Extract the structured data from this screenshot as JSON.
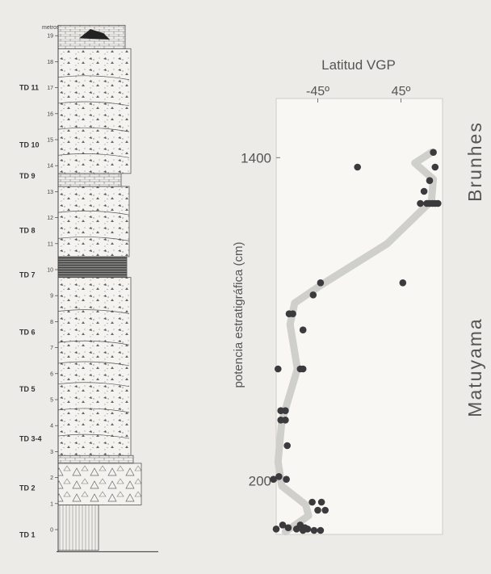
{
  "column": {
    "unit_label": "metros",
    "meter_ticks": [
      "0",
      "1",
      "2",
      "3",
      "4",
      "5",
      "6",
      "7",
      "8",
      "9",
      "10",
      "11",
      "12",
      "13",
      "14",
      "15",
      "16",
      "17",
      "18",
      "19"
    ],
    "units": [
      {
        "label": "TD 11",
        "m": 17.0
      },
      {
        "label": "TD 10",
        "m": 14.8
      },
      {
        "label": "TD 9",
        "m": 13.6
      },
      {
        "label": "TD 8",
        "m": 11.5
      },
      {
        "label": "TD 7",
        "m": 9.8
      },
      {
        "label": "TD 6",
        "m": 7.6
      },
      {
        "label": "TD 5",
        "m": 5.4
      },
      {
        "label": "TD 3-4",
        "m": 3.5
      },
      {
        "label": "TD 2",
        "m": 1.6
      },
      {
        "label": "TD 1",
        "m": -0.2
      }
    ]
  },
  "chart_data": {
    "type": "scatter",
    "title": "Latitud VGP",
    "xlabel": "",
    "ylabel": "potencia estratigráfica (cm)",
    "x_ticks": [
      "-45º",
      "45º"
    ],
    "x_tick_values": [
      -45,
      45
    ],
    "y_ticks": [
      "1400",
      "200"
    ],
    "y_tick_values": [
      1400,
      200
    ],
    "xlim": [
      -90,
      90
    ],
    "ylim": [
      0,
      1620
    ],
    "grid": false,
    "zones": [
      "Brunhes",
      "Matuyama"
    ],
    "points": [
      {
        "x": 80,
        "y": 1420
      },
      {
        "x": 82,
        "y": 1365
      },
      {
        "x": 76,
        "y": 1315
      },
      {
        "x": -2,
        "y": 1365
      },
      {
        "x": 70,
        "y": 1275
      },
      {
        "x": 73,
        "y": 1230
      },
      {
        "x": 76,
        "y": 1230
      },
      {
        "x": 79,
        "y": 1230
      },
      {
        "x": 82,
        "y": 1230
      },
      {
        "x": 85,
        "y": 1230
      },
      {
        "x": 66,
        "y": 1230
      },
      {
        "x": 47,
        "y": 935
      },
      {
        "x": -42,
        "y": 935
      },
      {
        "x": -50,
        "y": 890
      },
      {
        "x": -72,
        "y": 820
      },
      {
        "x": -76,
        "y": 820
      },
      {
        "x": -61,
        "y": 760
      },
      {
        "x": -88,
        "y": 615
      },
      {
        "x": -61,
        "y": 615
      },
      {
        "x": -64,
        "y": 615
      },
      {
        "x": -85,
        "y": 460
      },
      {
        "x": -80,
        "y": 460
      },
      {
        "x": -85,
        "y": 425
      },
      {
        "x": -80,
        "y": 425
      },
      {
        "x": -78,
        "y": 330
      },
      {
        "x": -93,
        "y": 205
      },
      {
        "x": -87,
        "y": 215
      },
      {
        "x": -79,
        "y": 205
      },
      {
        "x": -51,
        "y": 120
      },
      {
        "x": -41,
        "y": 120
      },
      {
        "x": -45,
        "y": 90
      },
      {
        "x": -37,
        "y": 90
      },
      {
        "x": -90,
        "y": 20
      },
      {
        "x": -83,
        "y": 35
      },
      {
        "x": -77,
        "y": 25
      },
      {
        "x": -68,
        "y": 20
      },
      {
        "x": -64,
        "y": 35
      },
      {
        "x": -59,
        "y": 25
      },
      {
        "x": -56,
        "y": 20
      },
      {
        "x": -49,
        "y": 15
      },
      {
        "x": -42,
        "y": 15
      },
      {
        "x": -61,
        "y": 15
      }
    ],
    "trend_line": [
      {
        "x": -80,
        "y": 10
      },
      {
        "x": -55,
        "y": 70
      },
      {
        "x": -58,
        "y": 110
      },
      {
        "x": -84,
        "y": 180
      },
      {
        "x": -88,
        "y": 270
      },
      {
        "x": -84,
        "y": 420
      },
      {
        "x": -67,
        "y": 615
      },
      {
        "x": -75,
        "y": 780
      },
      {
        "x": -70,
        "y": 860
      },
      {
        "x": -40,
        "y": 930
      },
      {
        "x": 30,
        "y": 1080
      },
      {
        "x": 78,
        "y": 1240
      },
      {
        "x": 80,
        "y": 1320
      },
      {
        "x": 60,
        "y": 1380
      },
      {
        "x": 78,
        "y": 1420
      }
    ]
  }
}
